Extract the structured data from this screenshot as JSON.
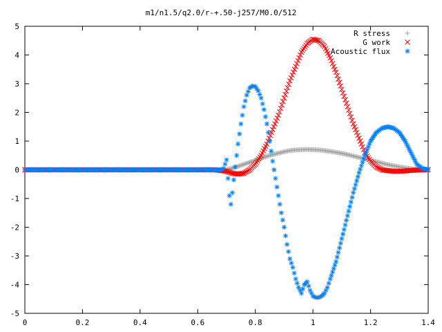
{
  "chart_data": {
    "type": "scatter",
    "title": "m1/n1.5/q2.0/r-+.50-j257/M0.0/512",
    "xlabel": "",
    "ylabel": "",
    "xlim": [
      0,
      1.4
    ],
    "ylim": [
      -5,
      5
    ],
    "x_ticks": [
      "0",
      "0.2",
      "0.4",
      "0.6",
      "0.8",
      "1",
      "1.2",
      "1.4"
    ],
    "y_ticks": [
      "5",
      "4",
      "3",
      "2",
      "1",
      "0",
      "-1",
      "-2",
      "-3",
      "-4",
      "-5"
    ],
    "grid": false,
    "legend_position": "top-right",
    "series": [
      {
        "name": "R stress",
        "marker": "+",
        "color": "#a0a0a0",
        "x": [
          0,
          0.1,
          0.2,
          0.3,
          0.4,
          0.5,
          0.6,
          0.66,
          0.7,
          0.72,
          0.74,
          0.76,
          0.78,
          0.8,
          0.82,
          0.84,
          0.86,
          0.88,
          0.9,
          0.92,
          0.94,
          0.96,
          0.98,
          1.0,
          1.02,
          1.04,
          1.06,
          1.08,
          1.1,
          1.12,
          1.14,
          1.16,
          1.18,
          1.2,
          1.22,
          1.24,
          1.26,
          1.28,
          1.3,
          1.32,
          1.34,
          1.36,
          1.38,
          1.4
        ],
        "y": [
          0,
          0,
          0,
          0,
          0,
          0,
          0,
          0,
          0.0,
          0.06,
          0.12,
          0.19,
          0.26,
          0.33,
          0.4,
          0.47,
          0.53,
          0.58,
          0.63,
          0.67,
          0.69,
          0.7,
          0.71,
          0.7,
          0.69,
          0.67,
          0.64,
          0.61,
          0.57,
          0.53,
          0.48,
          0.43,
          0.38,
          0.33,
          0.28,
          0.23,
          0.18,
          0.14,
          0.1,
          0.07,
          0.04,
          0.02,
          0.01,
          0.0
        ]
      },
      {
        "name": "G work",
        "marker": "x",
        "color": "#ff0000",
        "x": [
          0,
          0.1,
          0.2,
          0.3,
          0.4,
          0.5,
          0.6,
          0.66,
          0.7,
          0.72,
          0.74,
          0.76,
          0.78,
          0.8,
          0.82,
          0.84,
          0.86,
          0.88,
          0.9,
          0.92,
          0.94,
          0.96,
          0.98,
          1.0,
          1.02,
          1.04,
          1.06,
          1.08,
          1.1,
          1.12,
          1.14,
          1.16,
          1.18,
          1.2,
          1.22,
          1.24,
          1.26,
          1.28,
          1.3,
          1.32,
          1.34,
          1.36,
          1.38,
          1.4
        ],
        "y": [
          0,
          0,
          0,
          0,
          0,
          0,
          0,
          0,
          -0.05,
          -0.12,
          -0.15,
          -0.12,
          0.0,
          0.2,
          0.5,
          0.9,
          1.4,
          1.9,
          2.5,
          3.1,
          3.6,
          4.1,
          4.4,
          4.55,
          4.5,
          4.3,
          3.9,
          3.4,
          2.8,
          2.2,
          1.6,
          1.1,
          0.6,
          0.3,
          0.1,
          0.0,
          -0.03,
          -0.05,
          -0.05,
          -0.04,
          -0.02,
          -0.01,
          0.0,
          0.0
        ]
      },
      {
        "name": "Acoustic flux",
        "marker": "*",
        "color": "#0080ff",
        "x": [
          0,
          0.1,
          0.2,
          0.3,
          0.4,
          0.5,
          0.6,
          0.66,
          0.68,
          0.69,
          0.7,
          0.705,
          0.71,
          0.715,
          0.72,
          0.73,
          0.74,
          0.75,
          0.76,
          0.77,
          0.78,
          0.79,
          0.8,
          0.81,
          0.82,
          0.83,
          0.84,
          0.85,
          0.86,
          0.87,
          0.88,
          0.89,
          0.9,
          0.91,
          0.92,
          0.93,
          0.94,
          0.95,
          0.96,
          0.97,
          0.98,
          0.99,
          1.0,
          1.01,
          1.02,
          1.03,
          1.04,
          1.05,
          1.06,
          1.08,
          1.1,
          1.12,
          1.14,
          1.16,
          1.18,
          1.2,
          1.22,
          1.24,
          1.26,
          1.28,
          1.3,
          1.32,
          1.34,
          1.36,
          1.38,
          1.4
        ],
        "y": [
          0,
          0,
          0,
          0,
          0,
          0,
          0,
          0,
          0,
          0.05,
          0.35,
          -0.3,
          -0.9,
          -1.2,
          -0.8,
          0.1,
          0.9,
          1.6,
          2.2,
          2.6,
          2.85,
          2.92,
          2.9,
          2.75,
          2.5,
          2.1,
          1.6,
          1.0,
          0.3,
          -0.3,
          -0.9,
          -1.5,
          -2.0,
          -2.6,
          -3.1,
          -3.4,
          -3.8,
          -4.1,
          -4.3,
          -4.0,
          -3.9,
          -4.2,
          -4.4,
          -4.45,
          -4.45,
          -4.4,
          -4.3,
          -4.1,
          -3.8,
          -3.2,
          -2.4,
          -1.6,
          -0.8,
          -0.1,
          0.5,
          1.0,
          1.3,
          1.45,
          1.5,
          1.45,
          1.3,
          1.0,
          0.6,
          0.2,
          0.05,
          0.0
        ]
      }
    ]
  }
}
